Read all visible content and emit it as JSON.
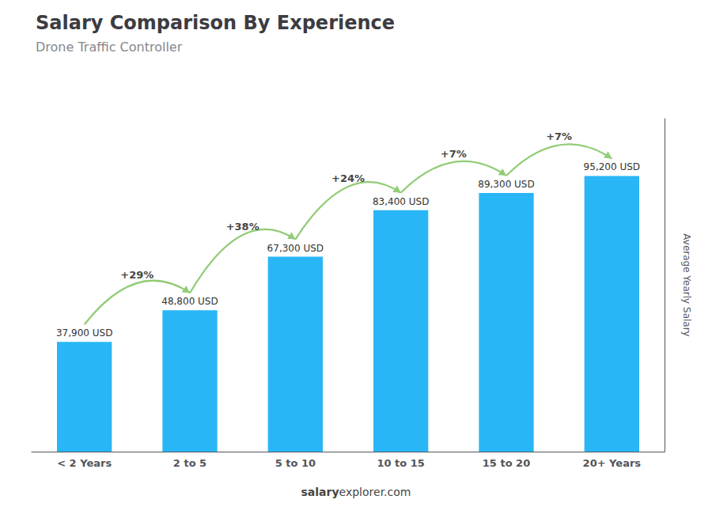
{
  "chart_data": {
    "type": "bar",
    "title": "Salary Comparison By Experience",
    "subtitle": "Drone Traffic Controller",
    "categories": [
      "< 2 Years",
      "2 to 5",
      "5 to 10",
      "10 to 15",
      "15 to 20",
      "20+ Years"
    ],
    "values": [
      37900,
      48800,
      67300,
      83400,
      89300,
      95200
    ],
    "value_labels": [
      "37,900 USD",
      "48,800 USD",
      "67,300 USD",
      "83,400 USD",
      "89,300 USD",
      "95,200 USD"
    ],
    "data_labels": true,
    "color": "#29b6f6",
    "ylabel": "Average Yearly Salary",
    "ylim": [
      0,
      115000
    ],
    "tick_labels": "x",
    "grid": false,
    "annotations": [
      "+29%",
      "+38%",
      "+24%",
      "+7%",
      "+7%"
    ],
    "footer": [
      "salary",
      "explorer.com"
    ]
  }
}
